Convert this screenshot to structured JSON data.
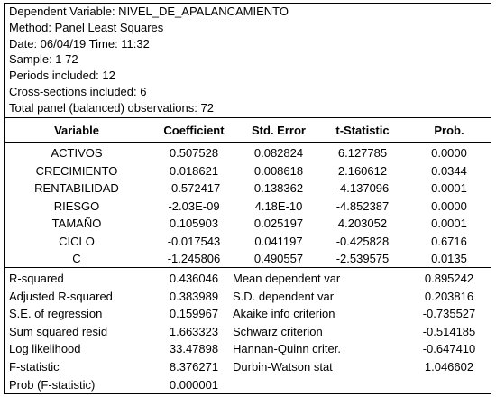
{
  "header": {
    "lines": [
      "Dependent Variable: NIVEL_DE_APALANCAMIENTO",
      "Method: Panel Least Squares",
      "Date: 06/04/19   Time: 11:32",
      "Sample: 1 72",
      "Periods included: 12",
      "Cross-sections included: 6",
      "Total panel (balanced) observations: 72"
    ]
  },
  "columns": {
    "variable": "Variable",
    "coefficient": "Coefficient",
    "std_error": "Std. Error",
    "t_statistic": "t-Statistic",
    "prob": "Prob."
  },
  "rows": [
    {
      "variable": "ACTIVOS",
      "coefficient": "0.507528",
      "std_error": "0.082824",
      "t_statistic": "6.127785",
      "prob": "0.0000"
    },
    {
      "variable": "CRECIMIENTO",
      "coefficient": "0.018621",
      "std_error": "0.008618",
      "t_statistic": "2.160612",
      "prob": "0.0344"
    },
    {
      "variable": "RENTABILIDAD",
      "coefficient": "-0.572417",
      "std_error": "0.138362",
      "t_statistic": "-4.137096",
      "prob": "0.0001"
    },
    {
      "variable": "RIESGO",
      "coefficient": "-2.03E-09",
      "std_error": "4.18E-10",
      "t_statistic": "-4.852387",
      "prob": "0.0000"
    },
    {
      "variable": "TAMAÑO",
      "coefficient": "0.105903",
      "std_error": "0.025197",
      "t_statistic": "4.203052",
      "prob": "0.0001"
    },
    {
      "variable": "CICLO",
      "coefficient": "-0.017543",
      "std_error": "0.041197",
      "t_statistic": "-0.425828",
      "prob": "0.6716"
    },
    {
      "variable": "C",
      "coefficient": "-1.245806",
      "std_error": "0.490557",
      "t_statistic": "-2.539575",
      "prob": "0.0135"
    }
  ],
  "stats": [
    {
      "label1": "R-squared",
      "val1": "0.436046",
      "label2": "Mean dependent var",
      "val2": "0.895242"
    },
    {
      "label1": "Adjusted R-squared",
      "val1": "0.383989",
      "label2": "S.D. dependent var",
      "val2": "0.203816"
    },
    {
      "label1": "S.E. of regression",
      "val1": "0.159967",
      "label2": "Akaike info criterion",
      "val2": "-0.735527"
    },
    {
      "label1": "Sum squared resid",
      "val1": "1.663323",
      "label2": "Schwarz criterion",
      "val2": "-0.514185"
    },
    {
      "label1": "Log likelihood",
      "val1": "33.47898",
      "label2": "Hannan-Quinn criter.",
      "val2": "-0.647410"
    },
    {
      "label1": "F-statistic",
      "val1": "8.376271",
      "label2": "Durbin-Watson stat",
      "val2": "1.046602"
    },
    {
      "label1": "Prob (F-statistic)",
      "val1": "0.000001",
      "label2": "",
      "val2": ""
    }
  ]
}
